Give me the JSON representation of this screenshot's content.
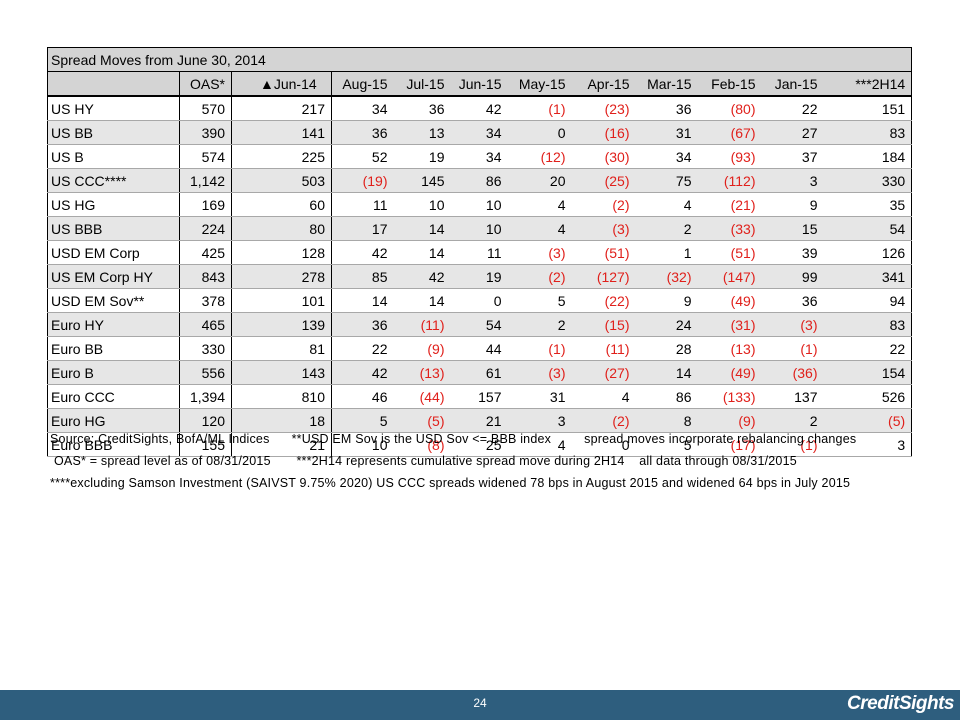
{
  "title": "Spread Moves from June 30, 2014",
  "columns": [
    "",
    "OAS*",
    "▲Jun-14",
    "Aug-15",
    "Jul-15",
    "Jun-15",
    "May-15",
    "Apr-15",
    "Mar-15",
    "Feb-15",
    "Jan-15",
    "***2H14"
  ],
  "rows": [
    [
      "US HY",
      "570",
      "217",
      "34",
      "36",
      "42",
      "(1)",
      "(23)",
      "36",
      "(80)",
      "22",
      "151"
    ],
    [
      "US BB",
      "390",
      "141",
      "36",
      "13",
      "34",
      "0",
      "(16)",
      "31",
      "(67)",
      "27",
      "83"
    ],
    [
      "US B",
      "574",
      "225",
      "52",
      "19",
      "34",
      "(12)",
      "(30)",
      "34",
      "(93)",
      "37",
      "184"
    ],
    [
      "US CCC****",
      "1,142",
      "503",
      "(19)",
      "145",
      "86",
      "20",
      "(25)",
      "75",
      "(112)",
      "3",
      "330"
    ],
    [
      "US HG",
      "169",
      "60",
      "11",
      "10",
      "10",
      "4",
      "(2)",
      "4",
      "(21)",
      "9",
      "35"
    ],
    [
      "US BBB",
      "224",
      "80",
      "17",
      "14",
      "10",
      "4",
      "(3)",
      "2",
      "(33)",
      "15",
      "54"
    ],
    [
      "USD EM Corp",
      "425",
      "128",
      "42",
      "14",
      "11",
      "(3)",
      "(51)",
      "1",
      "(51)",
      "39",
      "126"
    ],
    [
      "US EM Corp HY",
      "843",
      "278",
      "85",
      "42",
      "19",
      "(2)",
      "(127)",
      "(32)",
      "(147)",
      "99",
      "341"
    ],
    [
      "USD EM Sov**",
      "378",
      "101",
      "14",
      "14",
      "0",
      "5",
      "(22)",
      "9",
      "(49)",
      "36",
      "94"
    ],
    [
      "Euro HY",
      "465",
      "139",
      "36",
      "(11)",
      "54",
      "2",
      "(15)",
      "24",
      "(31)",
      "(3)",
      "83"
    ],
    [
      "Euro BB",
      "330",
      "81",
      "22",
      "(9)",
      "44",
      "(1)",
      "(11)",
      "28",
      "(13)",
      "(1)",
      "22"
    ],
    [
      "Euro B",
      "556",
      "143",
      "42",
      "(13)",
      "61",
      "(3)",
      "(27)",
      "14",
      "(49)",
      "(36)",
      "154"
    ],
    [
      "Euro CCC",
      "1,394",
      "810",
      "46",
      "(44)",
      "157",
      "31",
      "4",
      "86",
      "(133)",
      "137",
      "526"
    ],
    [
      "Euro HG",
      "120",
      "18",
      "5",
      "(5)",
      "21",
      "3",
      "(2)",
      "8",
      "(9)",
      "2",
      "(5)"
    ],
    [
      "Euro BBB",
      "155",
      "21",
      "10",
      "(8)",
      "25",
      "4",
      "0",
      "5",
      "(17)",
      "(1)",
      "3"
    ]
  ],
  "notes": {
    "line1a": "Source: CreditSights, BofA/ML Indices",
    "line1b": "**USD EM Sov is the USD Sov <= BBB index",
    "line1c": "spread moves incorporate rebalancing changes",
    "line2a": "OAS* = spread level as of 08/31/2015",
    "line2b": "***2H14 represents cumulative spread move during 2H14",
    "line2c": "all data through 08/31/2015",
    "line3": "****excluding Samson Investment (SAIVST 9.75% 2020) US CCC spreads widened 78 bps in August 2015 and widened 64 bps in July 2015"
  },
  "footer": {
    "page_number": "24",
    "brand": "CreditSights"
  },
  "colors": {
    "negative": "#e0201b",
    "footer_bar": "#2e5e7e",
    "header_bg": "#d4d4d4",
    "alt_row_bg": "#e6e6e6"
  }
}
